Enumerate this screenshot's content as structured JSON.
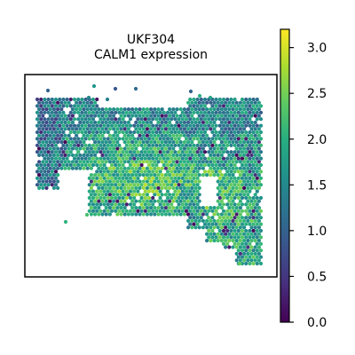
{
  "chart_data": {
    "type": "scatter",
    "title": "UKF304",
    "subtitle": "CALM1 expression",
    "xlabel": "",
    "ylabel": "",
    "colorbar": {
      "label": "",
      "colormap": "viridis",
      "range": [
        0.0,
        3.2
      ],
      "ticks": [
        0.0,
        0.5,
        1.0,
        1.5,
        2.0,
        2.5,
        3.0
      ],
      "tick_labels": [
        "0.0",
        "0.5",
        "1.0",
        "1.5",
        "2.0",
        "2.5",
        "3.0"
      ]
    },
    "grid": false,
    "legend": "colorbar-right",
    "frame": true,
    "point_count_estimate": 1500
  },
  "colors": {
    "viridis_low": "#440154",
    "viridis_mid_low": "#3b528b",
    "viridis_mid": "#21918c",
    "viridis_mid_high": "#5ec962",
    "viridis_high": "#fde725"
  }
}
